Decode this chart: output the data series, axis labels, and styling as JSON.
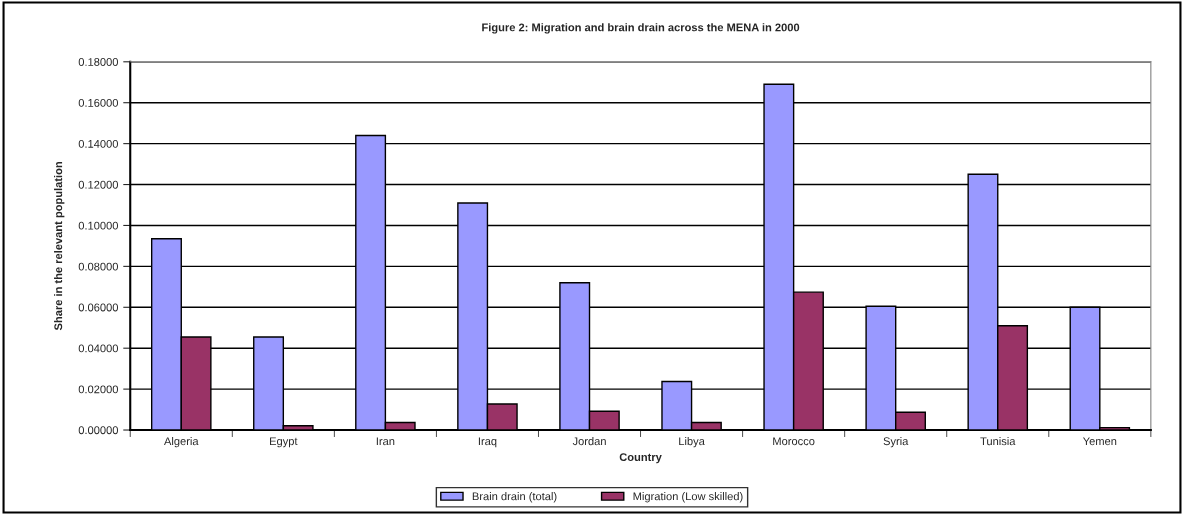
{
  "chart_data": {
    "type": "bar",
    "title": "Figure 2: Migration and brain drain across the MENA in 2000",
    "xlabel": "Country",
    "ylabel": "Share in the relevant population",
    "categories": [
      "Algeria",
      "Egypt",
      "Iran",
      "Iraq",
      "Jordan",
      "Libya",
      "Morocco",
      "Syria",
      "Tunisia",
      "Yemen"
    ],
    "series": [
      {
        "name": "Brain drain (total)",
        "color": "#9999ff",
        "values": [
          0.0935,
          0.0455,
          0.144,
          0.111,
          0.072,
          0.0237,
          0.169,
          0.0605,
          0.125,
          0.06
        ]
      },
      {
        "name": "Migration (Low skilled)",
        "color": "#993366",
        "values": [
          0.0455,
          0.0021,
          0.0037,
          0.0127,
          0.0092,
          0.0037,
          0.0674,
          0.0087,
          0.051,
          0.0012
        ]
      }
    ],
    "ylim": [
      0,
      0.18
    ],
    "yticks": [
      {
        "value": 0,
        "label": "0.00000"
      },
      {
        "value": 0.02,
        "label": "0.02000"
      },
      {
        "value": 0.04,
        "label": "0.04000"
      },
      {
        "value": 0.06,
        "label": "0.06000"
      },
      {
        "value": 0.08,
        "label": "0.08000"
      },
      {
        "value": 0.1,
        "label": "0.10000"
      },
      {
        "value": 0.12,
        "label": "0.12000"
      },
      {
        "value": 0.14,
        "label": "0.14000"
      },
      {
        "value": 0.16,
        "label": "0.16000"
      },
      {
        "value": 0.18,
        "label": "0.18000"
      }
    ],
    "grid": "y",
    "legend": "bottom"
  }
}
